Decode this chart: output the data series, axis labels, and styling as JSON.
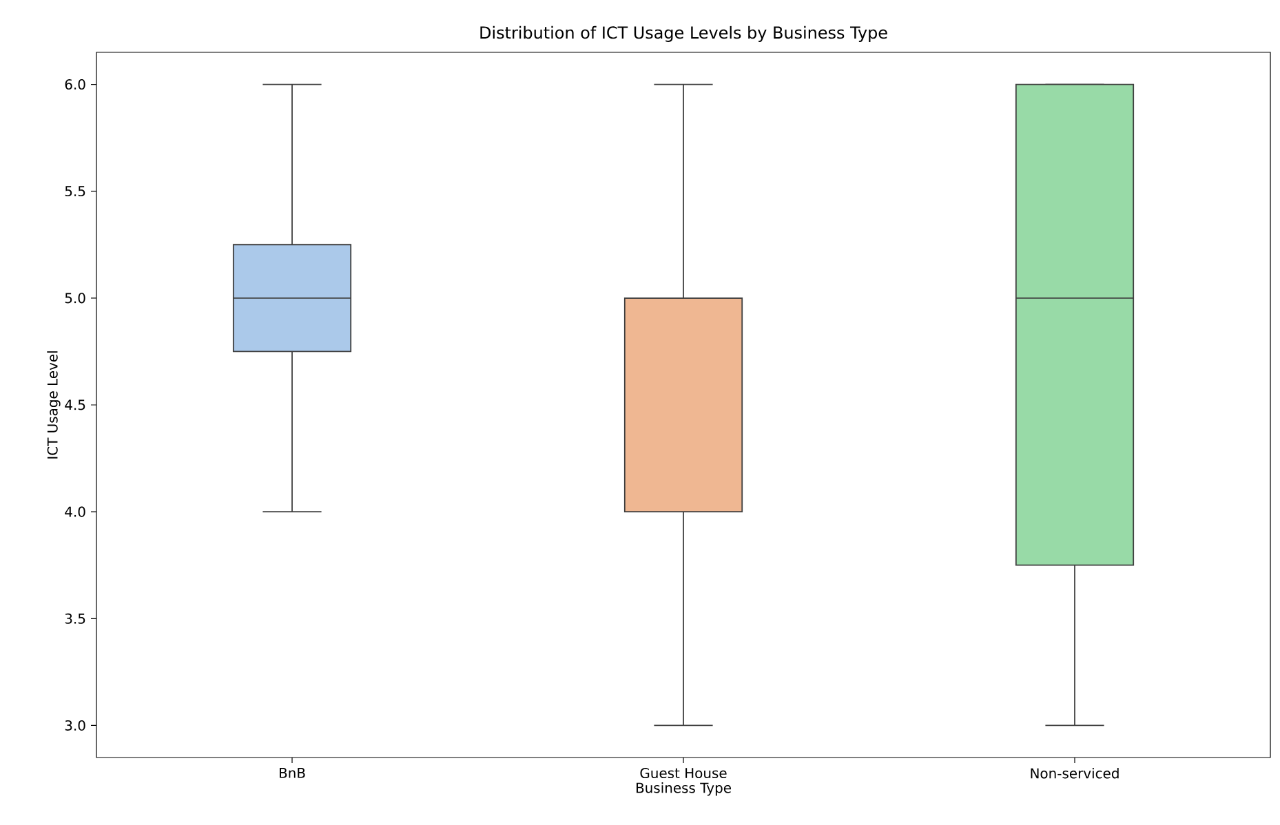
{
  "chart_data": {
    "type": "box",
    "title": "Distribution of ICT Usage Levels by Business Type",
    "xlabel": "Business Type",
    "ylabel": "ICT Usage Level",
    "categories": [
      "BnB",
      "Guest House",
      "Non-serviced"
    ],
    "boxes": [
      {
        "low": 4,
        "q1": 4.75,
        "median": 5,
        "q3": 5.25,
        "high": 6
      },
      {
        "low": 3,
        "q1": 4,
        "median": 5,
        "q3": 5,
        "high": 6
      },
      {
        "low": 3,
        "q1": 3.75,
        "median": 5,
        "q3": 6,
        "high": 6
      }
    ],
    "colors": [
      "#abc9ea",
      "#efb792",
      "#98daa7"
    ],
    "ylim": [
      2.85,
      6.15
    ],
    "yticks": [
      {
        "value": 3,
        "label": "3.0"
      },
      {
        "value": 3.5,
        "label": "3.5"
      },
      {
        "value": 4,
        "label": "4.0"
      },
      {
        "value": 4.5,
        "label": "4.5"
      },
      {
        "value": 5,
        "label": "5.0"
      },
      {
        "value": 5.5,
        "label": "5.5"
      },
      {
        "value": 6,
        "label": "6.0"
      }
    ]
  }
}
